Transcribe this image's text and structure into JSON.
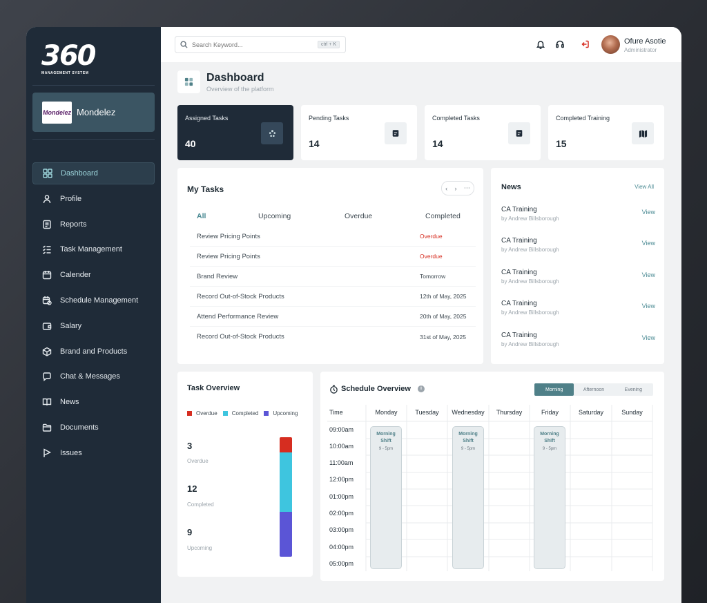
{
  "brand": {
    "logo_text": "360",
    "logo_sub": "MANAGEMENT SYSTEM"
  },
  "company": {
    "logo_text": "Mondelez",
    "name": "Mondelez"
  },
  "sidebar": {
    "items": [
      {
        "label": "Dashboard",
        "icon": "grid-icon"
      },
      {
        "label": "Profile",
        "icon": "user-icon"
      },
      {
        "label": "Reports",
        "icon": "report-icon"
      },
      {
        "label": "Task Management",
        "icon": "checklist-icon"
      },
      {
        "label": "Calender",
        "icon": "calendar-icon"
      },
      {
        "label": "Schedule Management",
        "icon": "calendar-clock-icon"
      },
      {
        "label": "Salary",
        "icon": "wallet-icon"
      },
      {
        "label": "Brand and Products",
        "icon": "box-icon"
      },
      {
        "label": "Chat & Messages",
        "icon": "chat-icon"
      },
      {
        "label": "News",
        "icon": "book-icon"
      },
      {
        "label": "Documents",
        "icon": "folder-icon"
      },
      {
        "label": "Issues",
        "icon": "flag-icon"
      }
    ],
    "active": "Dashboard"
  },
  "search": {
    "placeholder": "Search Keyword...",
    "shortcut": "ctrl + K"
  },
  "user": {
    "name": "Ofure Asotie",
    "role": "Administrator"
  },
  "page": {
    "title": "Dashboard",
    "subtitle": "Overview of the platform"
  },
  "stats": [
    {
      "label": "Assigned Tasks",
      "value": "40"
    },
    {
      "label": "Pending Tasks",
      "value": "14"
    },
    {
      "label": "Completed Tasks",
      "value": "14"
    },
    {
      "label": "Completed Training",
      "value": "15"
    }
  ],
  "my_tasks": {
    "title": "My Tasks",
    "tabs": [
      "All",
      "Upcoming",
      "Overdue",
      "Completed"
    ],
    "active_tab": "All",
    "rows": [
      {
        "name": "Review Pricing Points",
        "due": "Overdue",
        "overdue": true
      },
      {
        "name": "Review Pricing Points",
        "due": "Overdue",
        "overdue": true
      },
      {
        "name": "Brand Review",
        "due": "Tomorrow",
        "overdue": false
      },
      {
        "name": "Record Out-of-Stock Products",
        "due": "12th of May, 2025",
        "overdue": false
      },
      {
        "name": "Attend Performance Review",
        "due": "20th of May, 2025",
        "overdue": false
      },
      {
        "name": "Record Out-of-Stock Products",
        "due": "31st of May, 2025",
        "overdue": false
      }
    ]
  },
  "news": {
    "title": "News",
    "view_all": "View All",
    "items": [
      {
        "title": "CA Training",
        "by": "by Andrew Billsborough",
        "action": "View"
      },
      {
        "title": "CA Training",
        "by": "by Andrew Billsborough",
        "action": "View"
      },
      {
        "title": "CA Training",
        "by": "by Andrew Billsborough",
        "action": "View"
      },
      {
        "title": "CA Training",
        "by": "by Andrew Billsborough",
        "action": "View"
      },
      {
        "title": "CA Training",
        "by": "by Andrew Billsborough",
        "action": "View"
      }
    ]
  },
  "task_overview": {
    "title": "Task Overview",
    "legend": [
      {
        "label": "Overdue",
        "color": "#d62d20"
      },
      {
        "label": "Completed",
        "color": "#3ec5df"
      },
      {
        "label": "Upcoming",
        "color": "#5b55d6"
      }
    ],
    "values": [
      {
        "value": "3",
        "label": "Overdue"
      },
      {
        "value": "12",
        "label": "Completed"
      },
      {
        "value": "9",
        "label": "Upcoming"
      }
    ]
  },
  "schedule": {
    "title": "Schedule Overview",
    "shifts": [
      "Morning",
      "Afternoon",
      "Evening"
    ],
    "active_shift": "Morning",
    "time_header": "Time",
    "days": [
      "Monday",
      "Tuesday",
      "Wednesday",
      "Thursday",
      "Friday",
      "Saturday",
      "Sunday"
    ],
    "times": [
      "09:00am",
      "10:00am",
      "11:00am",
      "12:00pm",
      "01:00pm",
      "02:00pm",
      "03:00pm",
      "04:00pm",
      "05:00pm"
    ],
    "blocks": [
      {
        "day": "Monday",
        "name": "Morning Shift",
        "time": "9 - 5pm"
      },
      {
        "day": "Wednesday",
        "name": "Morning Shift",
        "time": "9 - 5pm"
      },
      {
        "day": "Friday",
        "name": "Morning Shift",
        "time": "9 - 5pm"
      }
    ]
  },
  "colors": {
    "sidebar_bg": "#1f2b38",
    "accent": "#4a8a93",
    "danger": "#d62d20"
  }
}
